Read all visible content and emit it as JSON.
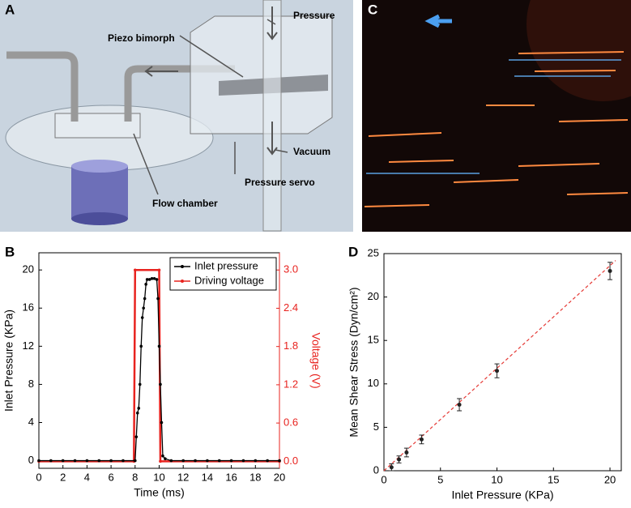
{
  "panel_labels": [
    "A",
    "B",
    "C",
    "D"
  ],
  "diagram": {
    "labels": [
      "Piezo bimorph",
      "Pressure",
      "Vacuum",
      "Pressure servo",
      "Flow chamber"
    ]
  },
  "chart_data": [
    {
      "type": "line",
      "xlabel": "Time (ms)",
      "ylabel": "Inlet Pressure (KPa)",
      "y2label": "Voltage (V)",
      "xlim": [
        0,
        20
      ],
      "xticks": [
        0,
        2,
        4,
        6,
        8,
        10,
        12,
        14,
        16,
        18,
        20
      ],
      "ylim": [
        -0.8,
        21.8
      ],
      "yticks": [
        0,
        4,
        8,
        12,
        16,
        20
      ],
      "y2lim": [
        -0.11,
        3.27
      ],
      "y2ticks": [
        {
          "value": 0,
          "label": "0.0"
        },
        0.6,
        1.2,
        1.8,
        2.4,
        {
          "value": 3,
          "label": "3.0"
        }
      ],
      "legend": "upper right",
      "series": [
        {
          "name": "Inlet pressure",
          "color": "#000000",
          "x": [
            0,
            1,
            2,
            3,
            4,
            5,
            6,
            7,
            8,
            8.1,
            8.2,
            8.3,
            8.4,
            8.5,
            8.6,
            8.7,
            8.8,
            8.9,
            9.0,
            9.2,
            9.4,
            9.6,
            9.8,
            9.9,
            10.0,
            10.1,
            10.2,
            10.3,
            10.5,
            11,
            12,
            13,
            14,
            15,
            16,
            17,
            18,
            19,
            20
          ],
          "values": [
            0,
            0,
            0,
            0,
            0,
            0,
            0,
            0,
            0,
            2.5,
            5,
            5.5,
            8,
            12,
            15,
            16,
            17,
            18.5,
            19,
            19,
            19.1,
            19.1,
            19,
            17,
            12,
            8,
            4,
            0.5,
            0.2,
            0,
            0,
            0,
            0,
            0,
            0,
            0,
            0,
            0,
            0
          ]
        },
        {
          "name": "Driving voltage",
          "color": "#e8231f",
          "axis": "y2",
          "x": [
            0,
            7.9,
            8,
            10,
            10.1,
            20
          ],
          "values": [
            0,
            0,
            3,
            3,
            0,
            0
          ]
        }
      ]
    },
    {
      "type": "scatter",
      "xlabel": "Inlet Pressure (KPa)",
      "ylabel": "Mean Shear Stress (Dyn/cm²)",
      "xlim": [
        0,
        21
      ],
      "xticks": [
        0,
        5,
        10,
        15,
        20
      ],
      "ylim": [
        0,
        25
      ],
      "yticks": [
        0,
        5,
        10,
        15,
        20,
        25
      ],
      "color": "#222222",
      "x": [
        0.67,
        1.33,
        2,
        3.33,
        6.67,
        10,
        20
      ],
      "values": [
        0.4,
        1.3,
        2.1,
        3.6,
        7.6,
        11.5,
        23
      ],
      "errors": [
        0.4,
        0.4,
        0.5,
        0.5,
        0.7,
        0.8,
        1.0
      ],
      "fit": {
        "color": "#e53935",
        "x": [
          0,
          20.5
        ],
        "values": [
          0,
          24.2
        ]
      }
    }
  ]
}
